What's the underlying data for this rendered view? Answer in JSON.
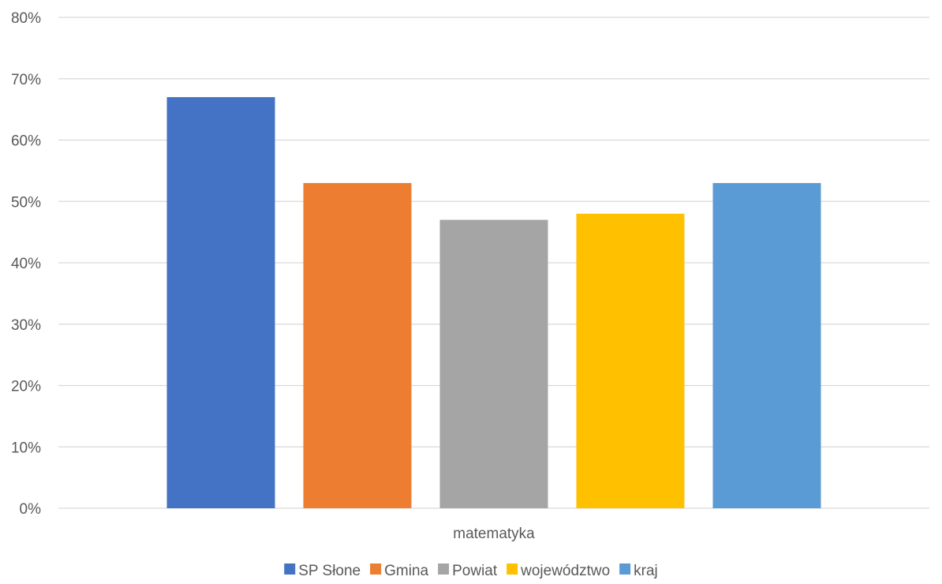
{
  "chart_data": {
    "type": "bar",
    "categories": [
      "matematyka"
    ],
    "series": [
      {
        "name": "SP Słone",
        "values": [
          67
        ],
        "color": "#4472C4"
      },
      {
        "name": "Gmina",
        "values": [
          53
        ],
        "color": "#ED7D31"
      },
      {
        "name": "Powiat",
        "values": [
          47
        ],
        "color": "#A5A5A5"
      },
      {
        "name": "województwo",
        "values": [
          48
        ],
        "color": "#FFC000"
      },
      {
        "name": "kraj",
        "values": [
          53
        ],
        "color": "#5B9BD5"
      }
    ],
    "ylim": [
      0,
      80
    ],
    "ytick_step": 10,
    "ytick_format": "%",
    "grid": true,
    "legend_position": "bottom"
  }
}
